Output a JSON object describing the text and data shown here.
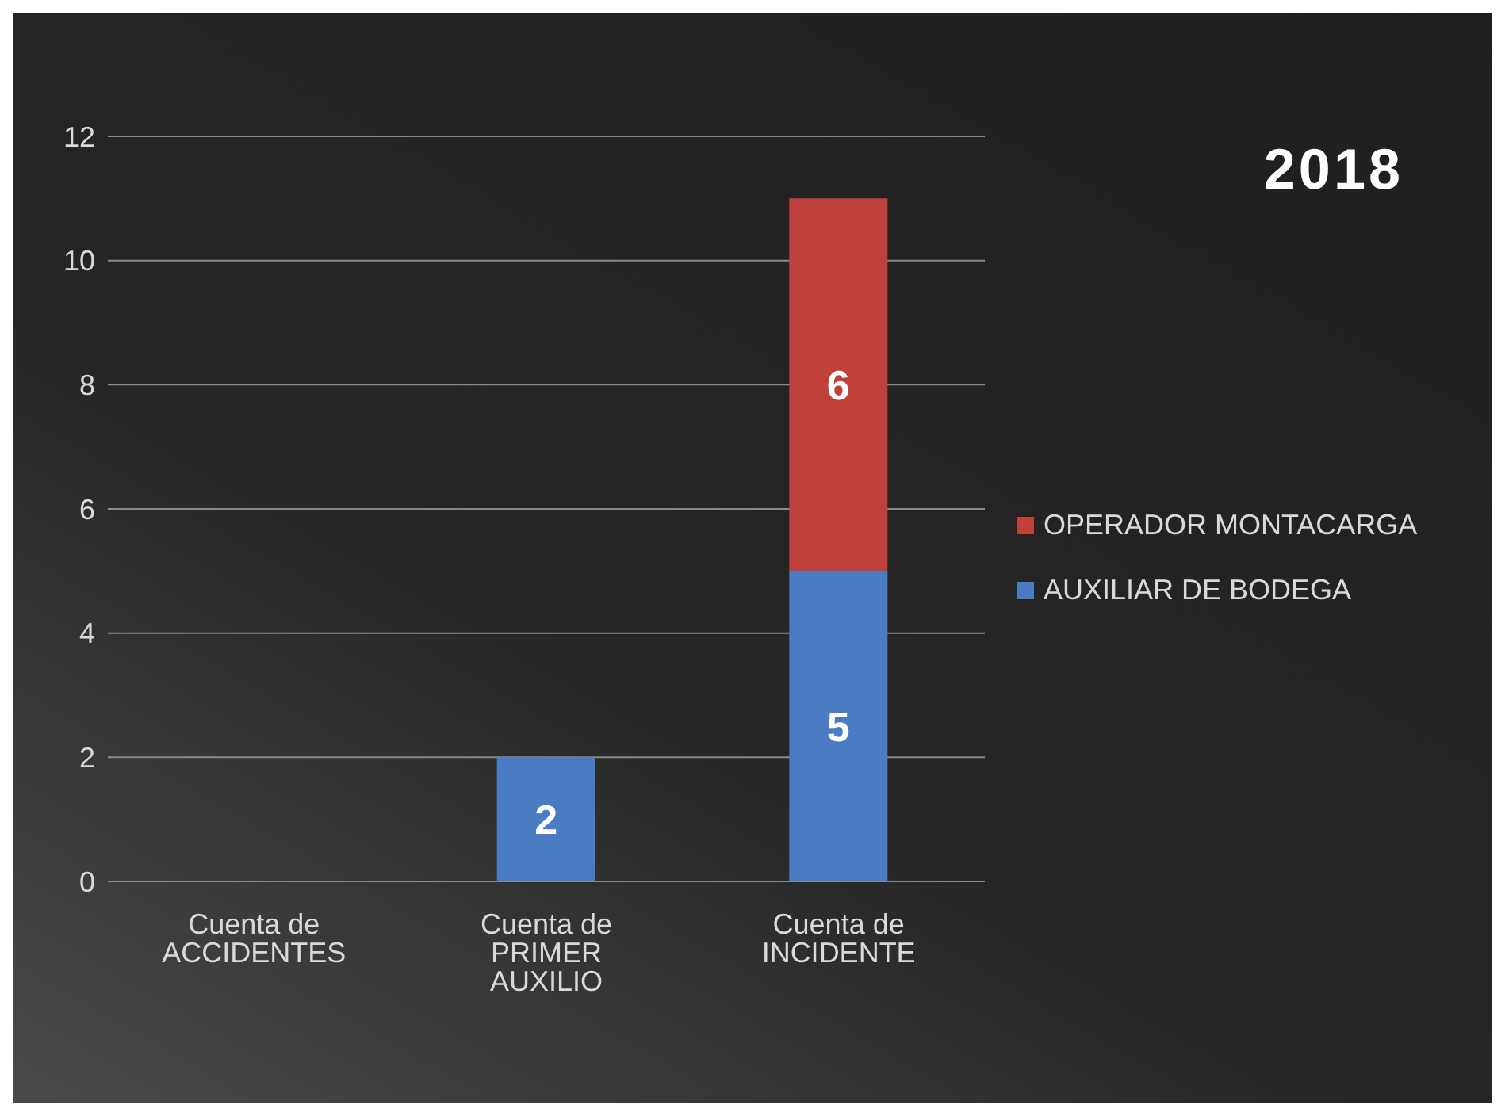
{
  "chart_data": {
    "type": "bar",
    "title": "2018",
    "categories": [
      "Cuenta de ACCIDENTES",
      "Cuenta de PRIMER AUXILIO",
      "Cuenta de INCIDENTE"
    ],
    "series": [
      {
        "name": "AUXILIAR DE BODEGA",
        "color": "#4a7cc4",
        "values": [
          null,
          2,
          5
        ]
      },
      {
        "name": "OPERADOR MONTACARGA",
        "color": "#c0403c",
        "values": [
          null,
          null,
          6
        ]
      }
    ],
    "stacked": true,
    "data_labels": true,
    "ylim": [
      0,
      12
    ],
    "yticks": [
      0,
      2,
      4,
      6,
      8,
      10,
      12
    ],
    "grid": "y",
    "legend": "right"
  }
}
